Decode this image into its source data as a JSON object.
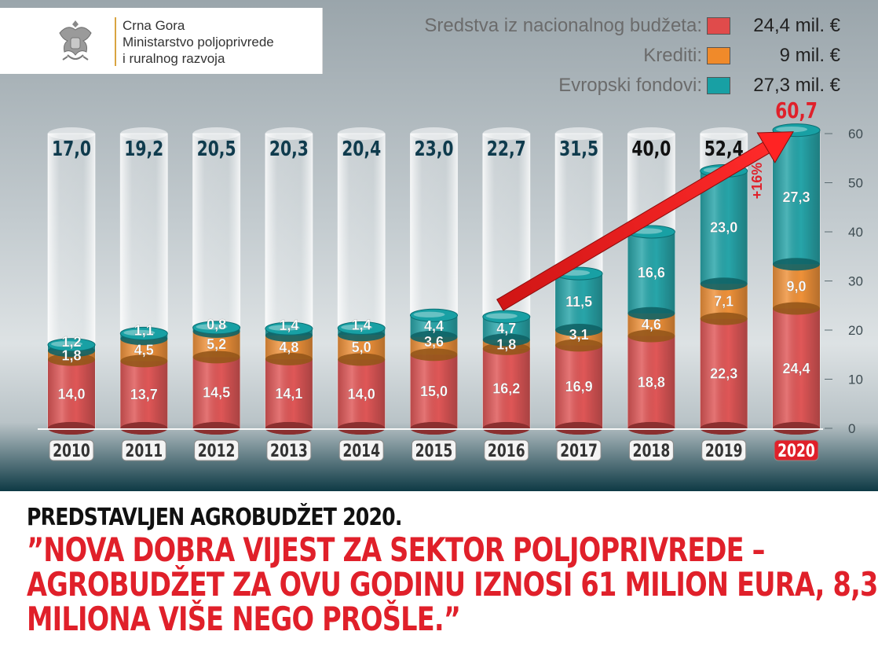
{
  "logo": {
    "line1": "Crna Gora",
    "line2": "Ministarstvo poljoprivrede",
    "line3": "i ruralnog razvoja",
    "icon": "montenegro-coat-of-arms"
  },
  "legend": [
    {
      "label": "Sredstva iz nacionalnog budžeta:",
      "value": "24,4 mil. €",
      "color": "#e04b4b"
    },
    {
      "label": "Krediti:",
      "value": "9 mil. €",
      "color": "#f08a2a"
    },
    {
      "label": "Evropski fondovi:",
      "value": "27,3 mil. €",
      "color": "#18a0a4"
    }
  ],
  "headline": {
    "line1": "PREDSTAVLJEN AGROBUDŽET 2020.",
    "line2": "”NOVA DOBRA VIJEST ZA SEKTOR POLJOPRIVREDE –",
    "line3": "AGROBUDŽET ZA OVU GODINU IZNOSI 61 MILION EURA, 8,3",
    "line4": "MILIONA VIŠE NEGO PROŠLE.”"
  },
  "chart_data": {
    "type": "bar",
    "stacked": true,
    "categories": [
      "2010",
      "2011",
      "2012",
      "2013",
      "2014",
      "2015",
      "2016",
      "2017",
      "2018",
      "2019",
      "2020"
    ],
    "series": [
      {
        "name": "Sredstva iz nacionalnog budžeta",
        "color": "#e04b4b",
        "values": [
          14.0,
          13.7,
          14.5,
          14.1,
          14.0,
          15.0,
          16.2,
          16.9,
          18.8,
          22.3,
          24.4
        ],
        "labels": [
          "14,0",
          "13,7",
          "14,5",
          "14,1",
          "14,0",
          "15,0",
          "16,2",
          "16,9",
          "18,8",
          "22,3",
          "24,4"
        ]
      },
      {
        "name": "Krediti",
        "color": "#f08a2a",
        "values": [
          1.8,
          4.5,
          5.2,
          4.8,
          5.0,
          3.6,
          1.8,
          3.1,
          4.6,
          7.1,
          9.0
        ],
        "labels": [
          "1,8",
          "4,5",
          "5,2",
          "4,8",
          "5,0",
          "3,6",
          "1,8",
          "3,1",
          "4,6",
          "7,1",
          "9,0"
        ]
      },
      {
        "name": "Evropski fondovi",
        "color": "#18a0a4",
        "values": [
          1.2,
          1.1,
          0.8,
          1.4,
          1.4,
          4.4,
          4.7,
          11.5,
          16.6,
          23.0,
          27.3
        ],
        "labels": [
          "1,2",
          "1,1",
          "0,8",
          "1,4",
          "1,4",
          "4,4",
          "4,7",
          "11,5",
          "16,6",
          "23,0",
          "27,3"
        ]
      }
    ],
    "totals": [
      "17,0",
      "19,2",
      "20,5",
      "20,3",
      "20,4",
      "23,0",
      "22,7",
      "31,5",
      "40,0",
      "52,4",
      "60,7"
    ],
    "y_ticks": [
      "0",
      "10",
      "20",
      "30",
      "40",
      "50",
      "60"
    ],
    "ylim": [
      0,
      60
    ],
    "annotations": [
      {
        "text": "+16%",
        "color": "#e0202a"
      }
    ],
    "highlight_color": "#e0202a"
  }
}
